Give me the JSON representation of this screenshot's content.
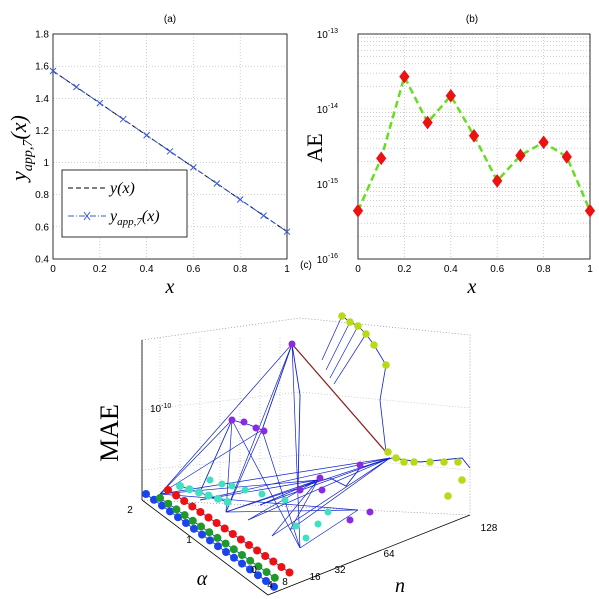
{
  "chart_data": [
    {
      "panel": "(a)",
      "type": "line",
      "xlabel": "x",
      "ylabel": "y_app,7(x)",
      "xlim": [
        0,
        1
      ],
      "ylim": [
        0.4,
        1.8
      ],
      "xticks": [
        "0",
        "0.2",
        "0.4",
        "0.6",
        "0.8",
        "1"
      ],
      "yticks": [
        "0.4",
        "0.6",
        "0.8",
        "1",
        "1.2",
        "1.4",
        "1.6",
        "1.8"
      ],
      "grid": true,
      "legend": "bottom-left",
      "series": [
        {
          "name": "y(x)",
          "style": "dashed",
          "color": "#000000",
          "x": [
            0,
            0.1,
            0.2,
            0.3,
            0.4,
            0.5,
            0.6,
            0.7,
            0.8,
            0.9,
            1
          ],
          "y": [
            1.57,
            1.47,
            1.37,
            1.27,
            1.17,
            1.07,
            0.97,
            0.87,
            0.77,
            0.67,
            0.57
          ]
        },
        {
          "name": "y_app,7(x)",
          "style": "dash-dot with x markers",
          "color": "#3a5bd0",
          "x": [
            0,
            0.1,
            0.2,
            0.3,
            0.4,
            0.5,
            0.6,
            0.7,
            0.8,
            0.9,
            1
          ],
          "y": [
            1.57,
            1.47,
            1.37,
            1.27,
            1.17,
            1.07,
            0.97,
            0.87,
            0.77,
            0.67,
            0.57
          ]
        }
      ],
      "legend_entries": [
        "y(x)",
        "y_app,7(x)"
      ]
    },
    {
      "panel": "(b)",
      "type": "line",
      "xlabel": "x",
      "ylabel": "AE",
      "yscale": "log",
      "xlim": [
        0,
        1
      ],
      "ylim": [
        1e-16,
        1e-13
      ],
      "xticks": [
        "0",
        "0.2",
        "0.4",
        "0.6",
        "0.8",
        "1"
      ],
      "ytick_exponents": [
        "-16",
        "-15",
        "-14",
        "-13"
      ],
      "ytick_base": "10",
      "grid": true,
      "series": [
        {
          "style": "dashed with diamond markers",
          "line_color": "#66dd22",
          "marker_color": "#ee1111",
          "x": [
            0,
            0.1,
            0.2,
            0.3,
            0.4,
            0.5,
            0.6,
            0.7,
            0.8,
            0.9,
            1
          ],
          "y": [
            4.4e-16,
            2.2e-15,
            2.7e-14,
            6.6e-15,
            1.5e-14,
            4.4e-15,
            1.1e-15,
            2.4e-15,
            3.6e-15,
            2.3e-15,
            4.4e-16
          ]
        }
      ]
    },
    {
      "panel": "(c)",
      "type": "3d-line",
      "zlabel": "MAE",
      "xlabel": "α",
      "ylabel": "n",
      "z_tick_exponent": "-10",
      "z_tick_base": "10",
      "alpha_ticks": [
        "0",
        "1",
        "2"
      ],
      "n_ticks": [
        "4",
        "8",
        "16",
        "32",
        "64",
        "128"
      ],
      "marker_colors": [
        "#1a44ee",
        "#1f9a2a",
        "#ee1111",
        "#40e0c0",
        "#8a2be2",
        "#b8d916"
      ],
      "line_color": "#1122cc",
      "highlight_line_color": "#8b1a1a"
    }
  ]
}
